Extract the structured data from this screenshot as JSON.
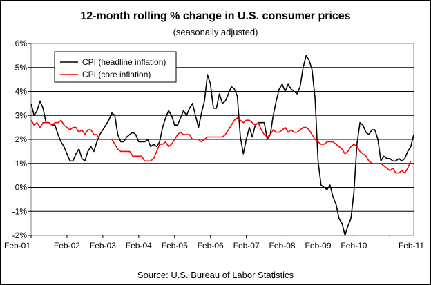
{
  "title": "12-month rolling % change in U.S. consumer prices",
  "subtitle": "(seasonally adjusted)",
  "source": "Source: U.S. Bureau of Labor Statistics",
  "chart_data": {
    "type": "line",
    "title": "12-month rolling % change in U.S. consumer prices",
    "subtitle": "(seasonally adjusted)",
    "xlabel": "",
    "ylabel": "",
    "ylim": [
      -2,
      6
    ],
    "y_ticks": [
      "-2%",
      "-1%",
      "0%",
      "1%",
      "2%",
      "3%",
      "4%",
      "5%",
      "6%"
    ],
    "x_ticks": [
      "Feb-01",
      "Feb-02",
      "Feb-03",
      "Feb-04",
      "Feb-05",
      "Feb-06",
      "Feb-07",
      "Feb-08",
      "Feb-09",
      "Feb-10",
      "Feb-11"
    ],
    "x_range": [
      "Feb-01",
      "Feb-11"
    ],
    "grid": "horizontal",
    "legend_position": "top-left",
    "series": [
      {
        "name": "CPI (headline inflation)",
        "color": "#000000",
        "values": [
          3.5,
          3.0,
          3.2,
          3.6,
          3.3,
          2.7,
          2.7,
          2.6,
          2.6,
          2.2,
          1.9,
          1.7,
          1.4,
          1.1,
          1.1,
          1.4,
          1.6,
          1.2,
          1.1,
          1.5,
          1.7,
          1.5,
          1.9,
          2.2,
          2.4,
          2.6,
          2.8,
          3.1,
          3.0,
          2.2,
          1.9,
          1.9,
          2.1,
          2.2,
          2.3,
          2.2,
          1.9,
          1.9,
          1.9,
          2.0,
          1.7,
          1.8,
          1.7,
          1.9,
          2.5,
          2.9,
          3.2,
          3.0,
          2.6,
          2.6,
          2.9,
          3.2,
          3.0,
          3.3,
          3.5,
          3.0,
          2.5,
          3.1,
          3.6,
          4.7,
          4.3,
          3.3,
          3.3,
          3.9,
          3.5,
          3.6,
          3.9,
          4.2,
          4.1,
          3.8,
          2.1,
          1.4,
          2.0,
          2.5,
          2.1,
          2.6,
          2.7,
          2.7,
          2.7,
          2.0,
          2.2,
          3.0,
          3.6,
          4.1,
          4.3,
          4.0,
          4.3,
          4.1,
          4.0,
          3.9,
          4.2,
          5.0,
          5.5,
          5.3,
          4.9,
          3.7,
          1.1,
          0.1,
          0.0,
          -0.1,
          0.1,
          -0.4,
          -0.7,
          -1.3,
          -1.5,
          -2.0,
          -1.6,
          -1.3,
          -0.2,
          1.8,
          2.7,
          2.6,
          2.3,
          2.2,
          2.4,
          2.4,
          2.0,
          1.1,
          1.3,
          1.2,
          1.2,
          1.1,
          1.1,
          1.2,
          1.1,
          1.2,
          1.5,
          1.7,
          2.2
        ]
      },
      {
        "name": "CPI (core inflation)",
        "color": "#ff0000",
        "values": [
          2.8,
          2.6,
          2.7,
          2.5,
          2.7,
          2.7,
          2.7,
          2.6,
          2.7,
          2.7,
          2.8,
          2.6,
          2.5,
          2.4,
          2.5,
          2.5,
          2.3,
          2.4,
          2.2,
          2.4,
          2.4,
          2.2,
          2.2,
          2.0,
          2.0,
          2.0,
          2.0,
          2.0,
          1.8,
          1.6,
          1.5,
          1.5,
          1.5,
          1.5,
          1.3,
          1.3,
          1.3,
          1.3,
          1.1,
          1.1,
          1.1,
          1.2,
          1.5,
          1.8,
          1.8,
          1.9,
          1.7,
          1.8,
          2.0,
          2.2,
          2.3,
          2.2,
          2.2,
          2.2,
          2.0,
          2.0,
          2.0,
          1.9,
          2.0,
          2.1,
          2.1,
          2.1,
          2.1,
          2.1,
          2.1,
          2.2,
          2.4,
          2.6,
          2.8,
          2.9,
          2.8,
          2.7,
          2.8,
          2.8,
          2.7,
          2.6,
          2.7,
          2.4,
          2.2,
          2.1,
          2.2,
          2.4,
          2.3,
          2.3,
          2.4,
          2.5,
          2.3,
          2.4,
          2.3,
          2.3,
          2.4,
          2.5,
          2.5,
          2.4,
          2.2,
          2.0,
          1.9,
          1.8,
          1.8,
          1.9,
          1.9,
          1.9,
          1.8,
          1.7,
          1.6,
          1.4,
          1.5,
          1.7,
          1.8,
          1.7,
          1.5,
          1.4,
          1.3,
          1.1,
          1.0,
          1.0,
          1.0,
          1.0,
          0.9,
          0.8,
          0.7,
          0.8,
          0.6,
          0.6,
          0.7,
          0.6,
          0.8,
          1.1
        ]
      }
    ]
  }
}
